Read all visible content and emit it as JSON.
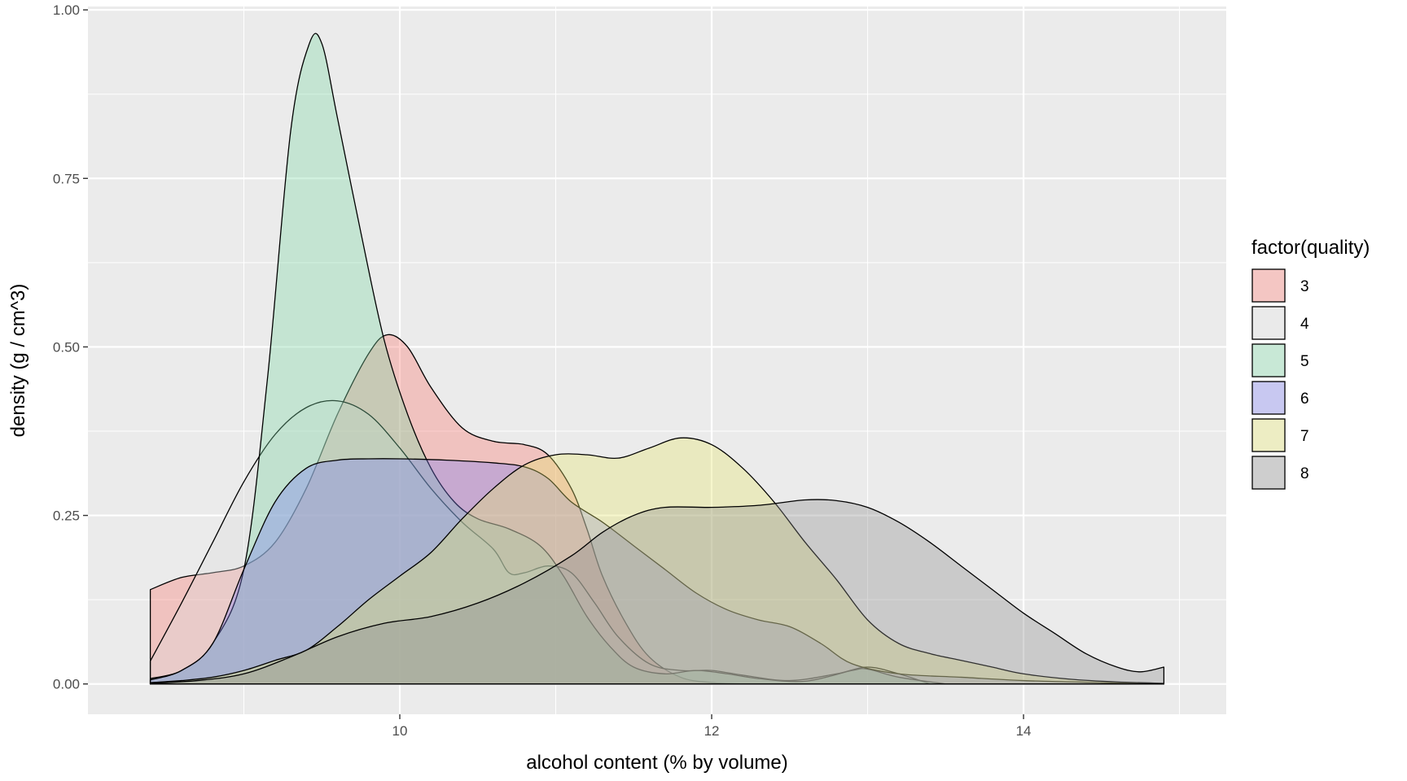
{
  "chart_data": {
    "type": "area",
    "subtype": "density",
    "xlabel": "alcohol content (% by volume)",
    "ylabel": "density (g / cm^3)",
    "xlim": [
      8.0,
      15.3
    ],
    "ylim": [
      -0.045,
      1.005
    ],
    "x_ticks": [
      {
        "value": 10,
        "label": "10"
      },
      {
        "value": 12,
        "label": "12"
      },
      {
        "value": 14,
        "label": "14"
      }
    ],
    "x_minor_ticks": [
      9,
      11,
      13,
      15
    ],
    "y_ticks": [
      {
        "value": 0.0,
        "label": "0.00"
      },
      {
        "value": 0.25,
        "label": "0.25"
      },
      {
        "value": 0.5,
        "label": "0.50"
      },
      {
        "value": 0.75,
        "label": "0.75"
      },
      {
        "value": 1.0,
        "label": "1.00"
      }
    ],
    "y_minor_ticks": [
      0.125,
      0.375,
      0.625,
      0.875
    ],
    "grid": true,
    "panel_background": "#EBEBEB",
    "grid_color": "#FFFFFF",
    "legend": {
      "title": "factor(quality)",
      "placement": "right"
    },
    "series": [
      {
        "name": "3",
        "fill": "#F8766D",
        "points": [
          [
            8.4,
            0.14
          ],
          [
            8.6,
            0.158
          ],
          [
            8.8,
            0.165
          ],
          [
            9.0,
            0.175
          ],
          [
            9.2,
            0.21
          ],
          [
            9.4,
            0.29
          ],
          [
            9.6,
            0.4
          ],
          [
            9.8,
            0.49
          ],
          [
            9.92,
            0.518
          ],
          [
            10.05,
            0.5
          ],
          [
            10.2,
            0.44
          ],
          [
            10.4,
            0.38
          ],
          [
            10.6,
            0.36
          ],
          [
            10.8,
            0.355
          ],
          [
            10.95,
            0.34
          ],
          [
            11.1,
            0.29
          ],
          [
            11.2,
            0.23
          ],
          [
            11.3,
            0.16
          ],
          [
            11.45,
            0.09
          ],
          [
            11.6,
            0.04
          ],
          [
            11.8,
            0.01
          ],
          [
            12.0,
            0.002
          ],
          [
            12.2,
            0.0
          ]
        ]
      },
      {
        "name": "4",
        "fill": "#DDDDDD",
        "points": [
          [
            8.4,
            0.034
          ],
          [
            8.6,
            0.12
          ],
          [
            8.8,
            0.21
          ],
          [
            9.0,
            0.3
          ],
          [
            9.2,
            0.37
          ],
          [
            9.4,
            0.41
          ],
          [
            9.6,
            0.42
          ],
          [
            9.8,
            0.4
          ],
          [
            10.0,
            0.35
          ],
          [
            10.2,
            0.29
          ],
          [
            10.4,
            0.24
          ],
          [
            10.6,
            0.2
          ],
          [
            10.7,
            0.165
          ],
          [
            10.8,
            0.165
          ],
          [
            10.95,
            0.175
          ],
          [
            11.1,
            0.165
          ],
          [
            11.25,
            0.12
          ],
          [
            11.4,
            0.07
          ],
          [
            11.6,
            0.03
          ],
          [
            11.8,
            0.02
          ],
          [
            12.0,
            0.02
          ],
          [
            12.2,
            0.013
          ],
          [
            12.5,
            0.005
          ],
          [
            12.8,
            0.015
          ],
          [
            13.0,
            0.025
          ],
          [
            13.2,
            0.015
          ],
          [
            13.4,
            0.0
          ]
        ]
      },
      {
        "name": "5",
        "fill": "#7CD6A4",
        "points": [
          [
            8.4,
            0.008
          ],
          [
            8.6,
            0.02
          ],
          [
            8.8,
            0.06
          ],
          [
            9.0,
            0.17
          ],
          [
            9.15,
            0.45
          ],
          [
            9.3,
            0.82
          ],
          [
            9.42,
            0.95
          ],
          [
            9.5,
            0.95
          ],
          [
            9.6,
            0.84
          ],
          [
            9.75,
            0.67
          ],
          [
            9.9,
            0.51
          ],
          [
            10.05,
            0.4
          ],
          [
            10.2,
            0.32
          ],
          [
            10.35,
            0.27
          ],
          [
            10.5,
            0.245
          ],
          [
            10.7,
            0.23
          ],
          [
            10.9,
            0.205
          ],
          [
            11.05,
            0.16
          ],
          [
            11.2,
            0.1
          ],
          [
            11.35,
            0.055
          ],
          [
            11.5,
            0.025
          ],
          [
            11.7,
            0.015
          ],
          [
            11.9,
            0.02
          ],
          [
            12.1,
            0.015
          ],
          [
            12.3,
            0.008
          ],
          [
            12.6,
            0.004
          ],
          [
            12.9,
            0.02
          ],
          [
            13.0,
            0.022
          ],
          [
            13.2,
            0.01
          ],
          [
            13.5,
            0.0
          ]
        ]
      },
      {
        "name": "6",
        "fill": "#7B7BF0",
        "points": [
          [
            8.4,
            0.006
          ],
          [
            8.6,
            0.02
          ],
          [
            8.8,
            0.06
          ],
          [
            9.0,
            0.17
          ],
          [
            9.2,
            0.27
          ],
          [
            9.4,
            0.32
          ],
          [
            9.6,
            0.332
          ],
          [
            9.8,
            0.334
          ],
          [
            10.0,
            0.334
          ],
          [
            10.3,
            0.332
          ],
          [
            10.6,
            0.328
          ],
          [
            10.8,
            0.322
          ],
          [
            10.95,
            0.305
          ],
          [
            11.1,
            0.27
          ],
          [
            11.3,
            0.24
          ],
          [
            11.5,
            0.205
          ],
          [
            11.7,
            0.17
          ],
          [
            11.9,
            0.135
          ],
          [
            12.1,
            0.11
          ],
          [
            12.3,
            0.095
          ],
          [
            12.5,
            0.085
          ],
          [
            12.7,
            0.06
          ],
          [
            12.9,
            0.03
          ],
          [
            13.2,
            0.015
          ],
          [
            13.6,
            0.01
          ],
          [
            14.0,
            0.005
          ],
          [
            14.5,
            0.002
          ],
          [
            14.9,
            0.0
          ]
        ]
      },
      {
        "name": "7",
        "fill": "#E5E56E",
        "points": [
          [
            8.4,
            0.002
          ],
          [
            8.6,
            0.005
          ],
          [
            8.8,
            0.01
          ],
          [
            9.0,
            0.02
          ],
          [
            9.2,
            0.035
          ],
          [
            9.4,
            0.05
          ],
          [
            9.6,
            0.085
          ],
          [
            9.8,
            0.125
          ],
          [
            10.0,
            0.16
          ],
          [
            10.2,
            0.195
          ],
          [
            10.4,
            0.245
          ],
          [
            10.6,
            0.29
          ],
          [
            10.8,
            0.325
          ],
          [
            11.0,
            0.34
          ],
          [
            11.2,
            0.34
          ],
          [
            11.4,
            0.335
          ],
          [
            11.6,
            0.35
          ],
          [
            11.8,
            0.365
          ],
          [
            12.0,
            0.355
          ],
          [
            12.2,
            0.32
          ],
          [
            12.4,
            0.27
          ],
          [
            12.6,
            0.21
          ],
          [
            12.8,
            0.155
          ],
          [
            13.0,
            0.095
          ],
          [
            13.2,
            0.06
          ],
          [
            13.4,
            0.045
          ],
          [
            13.6,
            0.035
          ],
          [
            13.8,
            0.025
          ],
          [
            14.0,
            0.015
          ],
          [
            14.3,
            0.007
          ],
          [
            14.6,
            0.003
          ],
          [
            14.9,
            0.001
          ]
        ]
      },
      {
        "name": "8",
        "fill": "#8C8C8C",
        "points": [
          [
            8.4,
            0.001
          ],
          [
            8.7,
            0.005
          ],
          [
            9.0,
            0.015
          ],
          [
            9.3,
            0.04
          ],
          [
            9.6,
            0.07
          ],
          [
            9.9,
            0.09
          ],
          [
            10.2,
            0.1
          ],
          [
            10.5,
            0.12
          ],
          [
            10.8,
            0.15
          ],
          [
            11.1,
            0.19
          ],
          [
            11.3,
            0.225
          ],
          [
            11.5,
            0.25
          ],
          [
            11.7,
            0.262
          ],
          [
            12.0,
            0.262
          ],
          [
            12.3,
            0.265
          ],
          [
            12.6,
            0.273
          ],
          [
            12.8,
            0.272
          ],
          [
            13.0,
            0.262
          ],
          [
            13.2,
            0.24
          ],
          [
            13.4,
            0.21
          ],
          [
            13.6,
            0.175
          ],
          [
            13.8,
            0.14
          ],
          [
            14.0,
            0.105
          ],
          [
            14.2,
            0.075
          ],
          [
            14.4,
            0.045
          ],
          [
            14.6,
            0.025
          ],
          [
            14.75,
            0.018
          ],
          [
            14.9,
            0.025
          ]
        ]
      }
    ]
  }
}
